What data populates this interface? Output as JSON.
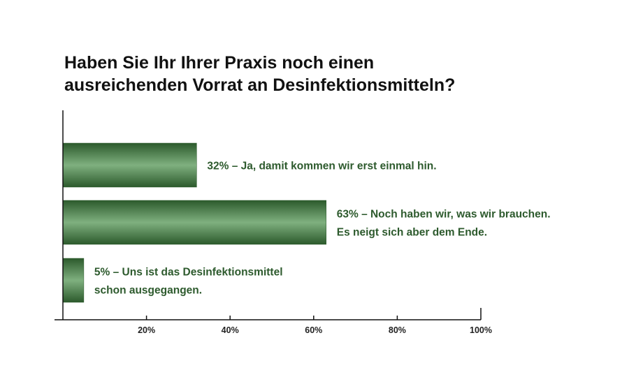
{
  "chart_data": {
    "type": "bar",
    "orientation": "horizontal",
    "title_lines": [
      "Haben Sie Ihr Ihrer Praxis noch einen",
      "ausreichenden Vorrat an Desinfektionsmitteln?"
    ],
    "categories": [
      [
        "32% – Ja, damit kommen wir erst einmal hin."
      ],
      [
        "63% – Noch haben wir, was wir brauchen.",
        "Es neigt sich aber dem Ende."
      ],
      [
        "5% – Uns ist das Desinfektionsmittel",
        "schon ausgegangen."
      ]
    ],
    "values": [
      32,
      63,
      5
    ],
    "xlim": [
      0,
      100
    ],
    "x_ticks": [
      20,
      40,
      60,
      80,
      100
    ],
    "x_tick_labels": [
      "20%",
      "40%",
      "60%",
      "80%",
      "100%"
    ],
    "grid": false,
    "legend": "none",
    "colors": {
      "bar_dark": "#2c5a2c",
      "bar_light": "#7fb07f",
      "label": "#2d5a2d",
      "axis": "#111111"
    }
  }
}
